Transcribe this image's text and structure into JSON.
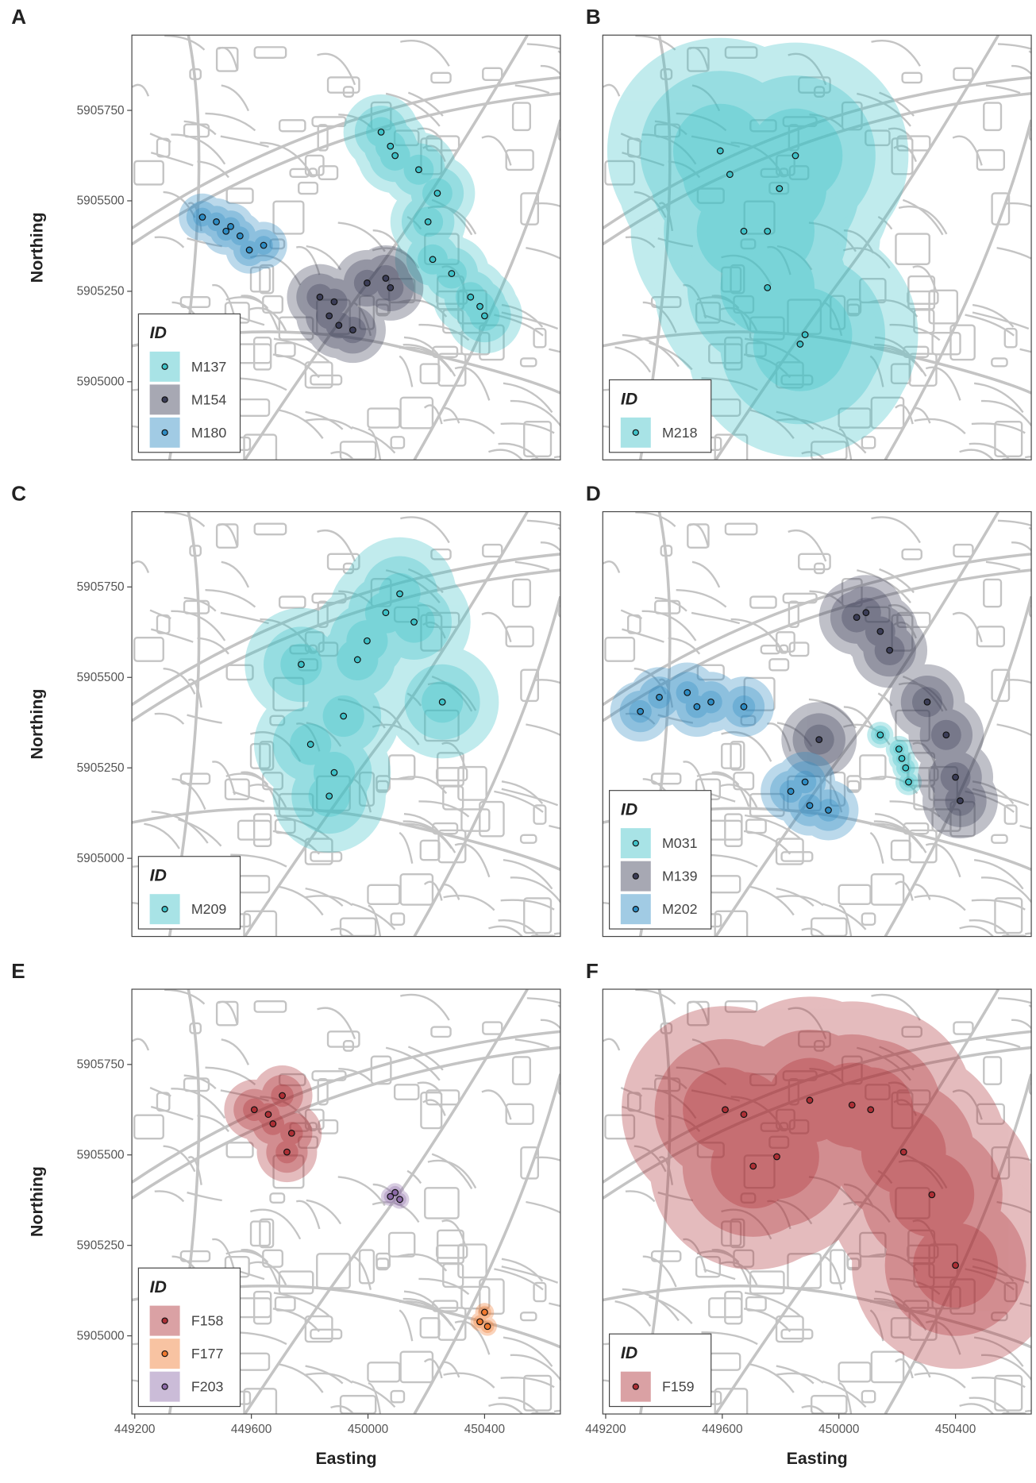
{
  "chart_data": [
    {
      "type": "scatter",
      "panel_label": "A",
      "ylabel": "Northing",
      "legend_title": "ID",
      "xlim": [
        449190,
        450660
      ],
      "ylim": [
        5904784,
        5905958
      ],
      "yticks": [
        5905000,
        5905250,
        5905500,
        5905750
      ],
      "series": [
        {
          "name": "M137",
          "color": "#3fc2c8",
          "x": [
            450045,
            450077,
            450093,
            450174,
            450238,
            450206,
            450222,
            450287,
            450352,
            450384,
            450400
          ],
          "values": [
            5905690,
            5905651,
            5905625,
            5905586,
            5905521,
            5905442,
            5905338,
            5905299,
            5905234,
            5905208,
            5905182
          ]
        },
        {
          "name": "M154",
          "color": "#3b3d57",
          "x": [
            449835,
            449867,
            449900,
            449948,
            449997,
            450061,
            450077,
            449884
          ],
          "values": [
            5905234,
            5905182,
            5905156,
            5905143,
            5905273,
            5905286,
            5905260,
            5905221
          ]
        },
        {
          "name": "M180",
          "color": "#2e8cc4",
          "x": [
            449432,
            449480,
            449529,
            449561,
            449593,
            449642,
            449513
          ],
          "values": [
            5905455,
            5905442,
            5905429,
            5905403,
            5905364,
            5905377,
            5905416
          ]
        }
      ]
    },
    {
      "type": "scatter",
      "panel_label": "B",
      "legend_title": "ID",
      "xlim": [
        449190,
        450660
      ],
      "ylim": [
        5904784,
        5905958
      ],
      "series": [
        {
          "name": "M218",
          "color": "#3fc2c8",
          "x": [
            449593,
            449626,
            449674,
            449755,
            449796,
            449851,
            449755,
            449884,
            449867
          ],
          "values": [
            5905638,
            5905573,
            5905416,
            5905416,
            5905534,
            5905625,
            5905260,
            5905130,
            5905104
          ]
        }
      ]
    },
    {
      "type": "scatter",
      "panel_label": "C",
      "ylabel": "Northing",
      "legend_title": "ID",
      "xlim": [
        449190,
        450660
      ],
      "ylim": [
        5904784,
        5905958
      ],
      "yticks": [
        5905000,
        5905250,
        5905500,
        5905750
      ],
      "series": [
        {
          "name": "M209",
          "color": "#3fc2c8",
          "x": [
            449771,
            449803,
            449867,
            449916,
            449964,
            450061,
            450109,
            450158,
            450255,
            449884,
            449997
          ],
          "values": [
            5905536,
            5905315,
            5905172,
            5905393,
            5905549,
            5905679,
            5905731,
            5905653,
            5905432,
            5905237,
            5905601
          ]
        }
      ]
    },
    {
      "type": "scatter",
      "panel_label": "D",
      "legend_title": "ID",
      "xlim": [
        449190,
        450660
      ],
      "ylim": [
        5904784,
        5905958
      ],
      "series": [
        {
          "name": "M031",
          "color": "#3fc2c8",
          "x": [
            450142,
            450206,
            450229,
            450239,
            450216
          ],
          "values": [
            5905341,
            5905302,
            5905250,
            5905211,
            5905276
          ]
        },
        {
          "name": "M139",
          "color": "#3b3d57",
          "x": [
            450061,
            450093,
            450142,
            450174,
            450303,
            450368,
            450400,
            450416,
            449932
          ],
          "values": [
            5905666,
            5905679,
            5905627,
            5905575,
            5905432,
            5905341,
            5905224,
            5905159,
            5905328
          ]
        },
        {
          "name": "M202",
          "color": "#2e8cc4",
          "x": [
            449319,
            449384,
            449480,
            449561,
            449674,
            449835,
            449900,
            449964,
            449884,
            449513
          ],
          "values": [
            5905406,
            5905445,
            5905458,
            5905432,
            5905419,
            5905185,
            5905146,
            5905133,
            5905211,
            5905419
          ]
        }
      ]
    },
    {
      "type": "scatter",
      "panel_label": "E",
      "ylabel": "Northing",
      "xlabel": "Easting",
      "legend_title": "ID",
      "xlim": [
        449190,
        450660
      ],
      "ylim": [
        5904784,
        5905958
      ],
      "xticks": [
        449200,
        449600,
        450000,
        450400
      ],
      "yticks": [
        5905000,
        5905250,
        5905500,
        5905750
      ],
      "series": [
        {
          "name": "F158",
          "color": "#ad2f35",
          "x": [
            449610,
            449658,
            449706,
            449738,
            449722,
            449674
          ],
          "values": [
            5905625,
            5905612,
            5905664,
            5905560,
            5905508,
            5905586
          ]
        },
        {
          "name": "F177",
          "color": "#f07a30",
          "x": [
            450384,
            450400,
            450410
          ],
          "values": [
            5905039,
            5905065,
            5905026
          ]
        },
        {
          "name": "F203",
          "color": "#8c6aa8",
          "x": [
            450077,
            450093,
            450109
          ],
          "values": [
            5905385,
            5905396,
            5905377
          ]
        }
      ]
    },
    {
      "type": "scatter",
      "panel_label": "F",
      "xlabel": "Easting",
      "legend_title": "ID",
      "xlim": [
        449190,
        450660
      ],
      "ylim": [
        5904784,
        5905958
      ],
      "xticks": [
        449200,
        449600,
        450000,
        450400
      ],
      "series": [
        {
          "name": "F159",
          "color": "#ad2f35",
          "x": [
            449610,
            449674,
            449706,
            449787,
            449900,
            450045,
            450109,
            450222,
            450319,
            450400
          ],
          "values": [
            5905625,
            5905612,
            5905469,
            5905495,
            5905651,
            5905638,
            5905625,
            5905508,
            5905390,
            5905195
          ]
        }
      ]
    }
  ]
}
